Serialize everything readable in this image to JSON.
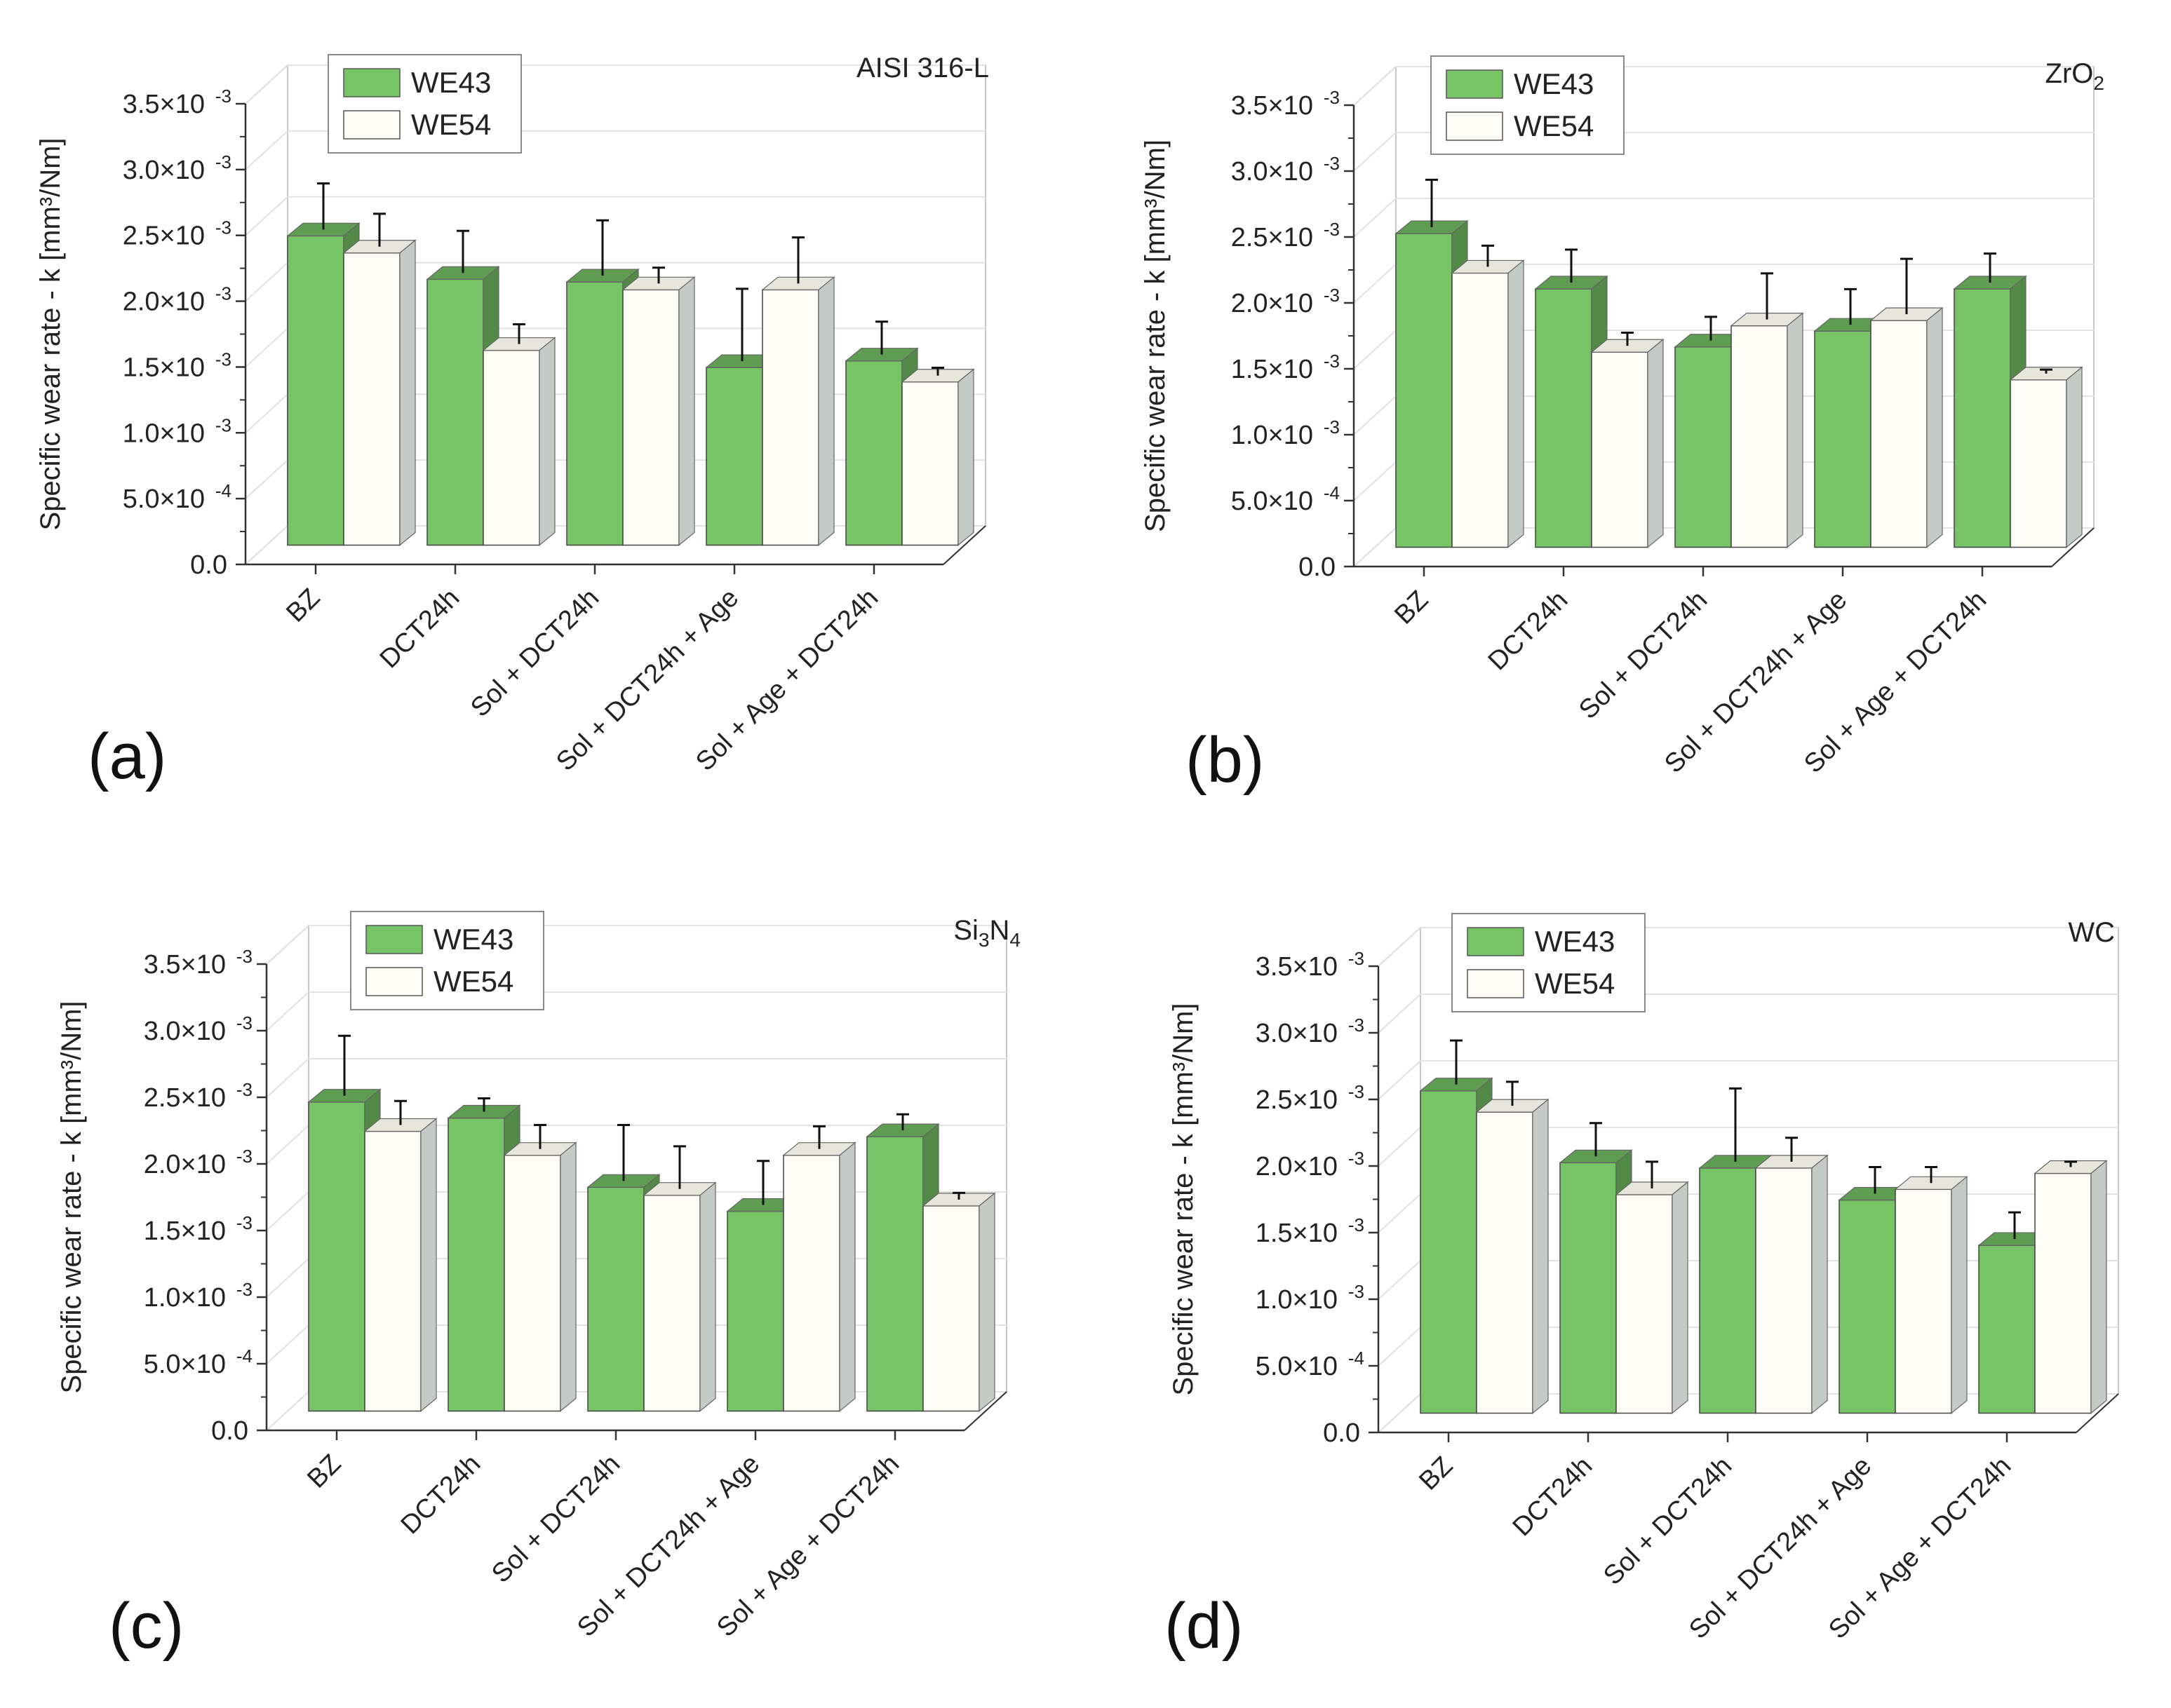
{
  "chart_data": [
    {
      "type": "bar",
      "panel_label": "(a)",
      "title": "AISI 316-L",
      "ylabel": "Specific wear rate - k [mm³/Nm]",
      "ylim": [
        0,
        0.0035
      ],
      "y_ticks": [
        {
          "value": 0,
          "mant": "0.0",
          "exp": ""
        },
        {
          "value": 0.0005,
          "mant": "5.0×10",
          "exp": "-4"
        },
        {
          "value": 0.001,
          "mant": "1.0×10",
          "exp": "-3"
        },
        {
          "value": 0.0015,
          "mant": "1.5×10",
          "exp": "-3"
        },
        {
          "value": 0.002,
          "mant": "2.0×10",
          "exp": "-3"
        },
        {
          "value": 0.0025,
          "mant": "2.5×10",
          "exp": "-3"
        },
        {
          "value": 0.003,
          "mant": "3.0×10",
          "exp": "-3"
        },
        {
          "value": 0.0035,
          "mant": "3.5×10",
          "exp": "-3"
        }
      ],
      "categories": [
        "BZ",
        "DCT24h",
        "Sol + DCT24h",
        "Sol + DCT24h + Age",
        "Sol + Age + DCT24h"
      ],
      "series": [
        {
          "name": "WE43",
          "color": "#77c466",
          "values": [
            0.00235,
            0.00202,
            0.002,
            0.00135,
            0.0014
          ],
          "errors": [
            0.00035,
            0.00032,
            0.00042,
            0.00055,
            0.00025
          ]
        },
        {
          "name": "WE54",
          "color": "#fdfdf6",
          "values": [
            0.00222,
            0.00148,
            0.00194,
            0.00194,
            0.00124
          ],
          "errors": [
            0.00025,
            0.00015,
            0.00012,
            0.00035,
            6e-05
          ]
        }
      ],
      "legend": "top-left",
      "grid": true
    },
    {
      "type": "bar",
      "panel_label": "(b)",
      "title": "ZrO",
      "title_sub": "2",
      "ylabel": "Specific wear rate - k [mm³/Nm]",
      "ylim": [
        0,
        0.0035
      ],
      "y_ticks": [
        {
          "value": 0,
          "mant": "0.0",
          "exp": ""
        },
        {
          "value": 0.0005,
          "mant": "5.0×10",
          "exp": "-4"
        },
        {
          "value": 0.001,
          "mant": "1.0×10",
          "exp": "-3"
        },
        {
          "value": 0.0015,
          "mant": "1.5×10",
          "exp": "-3"
        },
        {
          "value": 0.002,
          "mant": "2.0×10",
          "exp": "-3"
        },
        {
          "value": 0.0025,
          "mant": "2.5×10",
          "exp": "-3"
        },
        {
          "value": 0.003,
          "mant": "3.0×10",
          "exp": "-3"
        },
        {
          "value": 0.0035,
          "mant": "3.5×10",
          "exp": "-3"
        }
      ],
      "categories": [
        "BZ",
        "DCT24h",
        "Sol + DCT24h",
        "Sol + DCT24h + Age",
        "Sol + Age + DCT24h"
      ],
      "series": [
        {
          "name": "WE43",
          "color": "#77c466",
          "values": [
            0.00238,
            0.00196,
            0.00152,
            0.00164,
            0.00196
          ],
          "errors": [
            0.00036,
            0.00025,
            0.00018,
            0.00027,
            0.00022
          ]
        },
        {
          "name": "WE54",
          "color": "#fdfdf6",
          "values": [
            0.00208,
            0.00148,
            0.00168,
            0.00172,
            0.00127
          ],
          "errors": [
            0.00016,
            0.0001,
            0.00035,
            0.00042,
            3e-05
          ]
        }
      ],
      "legend": "top-left",
      "grid": true
    },
    {
      "type": "bar",
      "panel_label": "(c)",
      "title": "Si",
      "title_sub": "3",
      "title_tail": "N",
      "title_sub2": "4",
      "ylabel": "Specific wear rate - k [mm³/Nm]",
      "ylim": [
        0,
        0.0035
      ],
      "y_ticks": [
        {
          "value": 0,
          "mant": "0.0",
          "exp": ""
        },
        {
          "value": 0.0005,
          "mant": "5.0×10",
          "exp": "-4"
        },
        {
          "value": 0.001,
          "mant": "1.0×10",
          "exp": "-3"
        },
        {
          "value": 0.0015,
          "mant": "1.5×10",
          "exp": "-3"
        },
        {
          "value": 0.002,
          "mant": "2.0×10",
          "exp": "-3"
        },
        {
          "value": 0.0025,
          "mant": "2.5×10",
          "exp": "-3"
        },
        {
          "value": 0.003,
          "mant": "3.0×10",
          "exp": "-3"
        },
        {
          "value": 0.0035,
          "mant": "3.5×10",
          "exp": "-3"
        }
      ],
      "categories": [
        "BZ",
        "DCT24h",
        "Sol + DCT24h",
        "Sol + DCT24h + Age",
        "Sol + Age + DCT24h"
      ],
      "series": [
        {
          "name": "WE43",
          "color": "#77c466",
          "values": [
            0.00232,
            0.0022,
            0.00168,
            0.0015,
            0.00206
          ],
          "errors": [
            0.00045,
            0.0001,
            0.00042,
            0.00033,
            0.00012
          ]
        },
        {
          "name": "WE54",
          "color": "#fdfdf6",
          "values": [
            0.0021,
            0.00192,
            0.00162,
            0.00192,
            0.00154
          ],
          "errors": [
            0.00018,
            0.00018,
            0.00032,
            0.00017,
            5e-05
          ]
        }
      ],
      "legend": "top-left",
      "grid": true
    },
    {
      "type": "bar",
      "panel_label": "(d)",
      "title": "WC",
      "ylabel": "Specific wear rate - k [mm³/Nm]",
      "ylim": [
        0,
        0.0035
      ],
      "y_ticks": [
        {
          "value": 0,
          "mant": "0.0",
          "exp": ""
        },
        {
          "value": 0.0005,
          "mant": "5.0×10",
          "exp": "-4"
        },
        {
          "value": 0.001,
          "mant": "1.0×10",
          "exp": "-3"
        },
        {
          "value": 0.0015,
          "mant": "1.5×10",
          "exp": "-3"
        },
        {
          "value": 0.002,
          "mant": "2.0×10",
          "exp": "-3"
        },
        {
          "value": 0.0025,
          "mant": "2.5×10",
          "exp": "-3"
        },
        {
          "value": 0.003,
          "mant": "3.0×10",
          "exp": "-3"
        },
        {
          "value": 0.0035,
          "mant": "3.5×10",
          "exp": "-3"
        }
      ],
      "categories": [
        "BZ",
        "DCT24h",
        "Sol + DCT24h",
        "Sol + DCT24h + Age",
        "Sol + Age + DCT24h"
      ],
      "series": [
        {
          "name": "WE43",
          "color": "#77c466",
          "values": [
            0.00242,
            0.00188,
            0.00184,
            0.0016,
            0.00126
          ],
          "errors": [
            0.00033,
            0.00025,
            0.00055,
            0.0002,
            0.0002
          ]
        },
        {
          "name": "WE54",
          "color": "#fdfdf6",
          "values": [
            0.00226,
            0.00164,
            0.00184,
            0.00168,
            0.0018
          ],
          "errors": [
            0.00018,
            0.0002,
            0.00018,
            0.00012,
            4e-05
          ]
        }
      ],
      "legend": "top-left",
      "grid": true
    }
  ]
}
